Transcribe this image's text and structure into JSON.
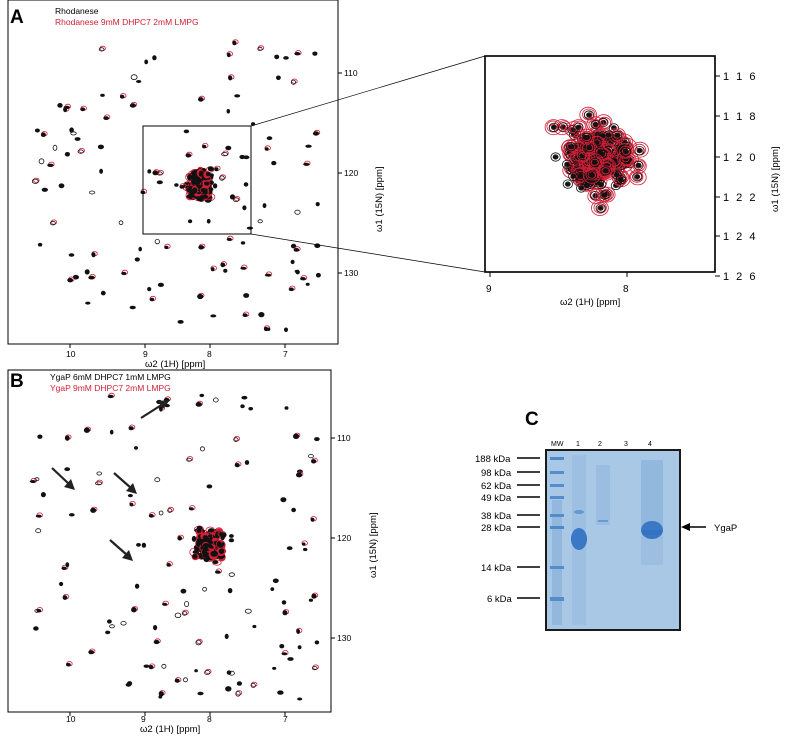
{
  "figure": {
    "panel_a": {
      "letter": "A",
      "legend": [
        "Rhodanese",
        "Rhodanese 9mM DHPC7 2mM LMPG"
      ],
      "x_ticks": [
        "10",
        "9",
        "8",
        "7"
      ],
      "y_ticks": [
        "110",
        "120",
        "130"
      ],
      "x_label": "ω2 (1H) [ppm]",
      "y_label": "ω1 (15N) [ppm]"
    },
    "zoom": {
      "x_ticks": [
        "9",
        "8"
      ],
      "y_ticks": [
        "1 1 6",
        "1 1 8",
        "1 2 0",
        "1 2 2",
        "1 2 4",
        "1 2 6"
      ],
      "x_label": "ω2 (1H) [ppm]",
      "y_label": "ω1 (15N) [ppm]"
    },
    "panel_b": {
      "letter": "B",
      "legend": [
        "YgaP 6mM DHPC7 1mM LMPG",
        "YgaP 9mM DHPC7 2mM LMPG"
      ],
      "x_ticks": [
        "10",
        "9",
        "8",
        "7"
      ],
      "y_ticks": [
        "110",
        "120",
        "130"
      ],
      "x_label": "ω2 (1H) [ppm]",
      "y_label": "ω1 (15N) [ppm]"
    },
    "panel_c": {
      "letter": "C",
      "lanes": [
        "MW",
        "1",
        "2",
        "3",
        "4"
      ],
      "markers": [
        "188 kDa",
        "98 kDa",
        "62 kDa",
        "49 kDa",
        "38 kDa",
        "28 kDa",
        "14 kDa",
        "6 kDa"
      ],
      "band_label": "YgaP"
    },
    "colors": {
      "black": "#111111",
      "red": "#d11f36",
      "gel_bg": "#a9c8e6",
      "gel_band": "#2d6fc2"
    }
  }
}
